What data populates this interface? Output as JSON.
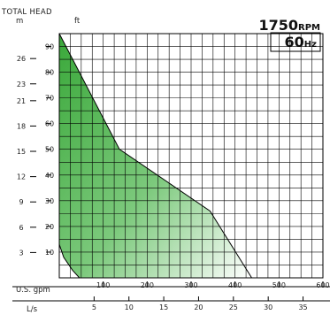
{
  "chart_data": {
    "type": "area",
    "title": "",
    "head_axis": {
      "label": "TOTAL HEAD",
      "unit_m": "m",
      "unit_ft": "ft",
      "m_ticks": [
        "26",
        "23",
        "21",
        "18",
        "15",
        "12",
        "9",
        "6",
        "3"
      ],
      "m_values": [
        26,
        23,
        21,
        18,
        15,
        12,
        9,
        6,
        3
      ],
      "ft_ticks": [
        "90",
        "80",
        "70",
        "60",
        "50",
        "40",
        "30",
        "20",
        "10"
      ],
      "ft_values": [
        90,
        80,
        70,
        60,
        50,
        40,
        30,
        20,
        10
      ],
      "ft_range": [
        0,
        95
      ]
    },
    "flow_axis": {
      "gpm_label": "U.S. gpm",
      "gpm_ticks": [
        "100",
        "200",
        "300",
        "400",
        "500",
        "600"
      ],
      "gpm_values": [
        100,
        200,
        300,
        400,
        500,
        600
      ],
      "gpm_range": [
        0,
        600
      ],
      "ls_label": "L/s",
      "ls_ticks": [
        "5",
        "10",
        "15",
        "20",
        "25",
        "30",
        "35"
      ],
      "ls_values": [
        5,
        10,
        15,
        20,
        25,
        30,
        35
      ]
    },
    "speed_label": "1750",
    "speed_unit": "RPM",
    "freq_label": "60",
    "freq_unit": "Hz",
    "colors": {
      "fill_strong": "#3aa83a",
      "fill_light": "#ffffff",
      "line": "#000000",
      "grid": "#000000"
    },
    "series": [
      {
        "values_gpm_ft": [
          [
            0,
            95
          ],
          [
            137,
            50
          ],
          [
            343,
            26
          ],
          [
            438,
            0
          ],
          [
            0,
            0
          ]
        ]
      },
      {
        "values_gpm_ft": [
          [
            0,
            13
          ],
          [
            10,
            8
          ],
          [
            30,
            3
          ],
          [
            46,
            0
          ],
          [
            0,
            0
          ]
        ]
      }
    ]
  }
}
